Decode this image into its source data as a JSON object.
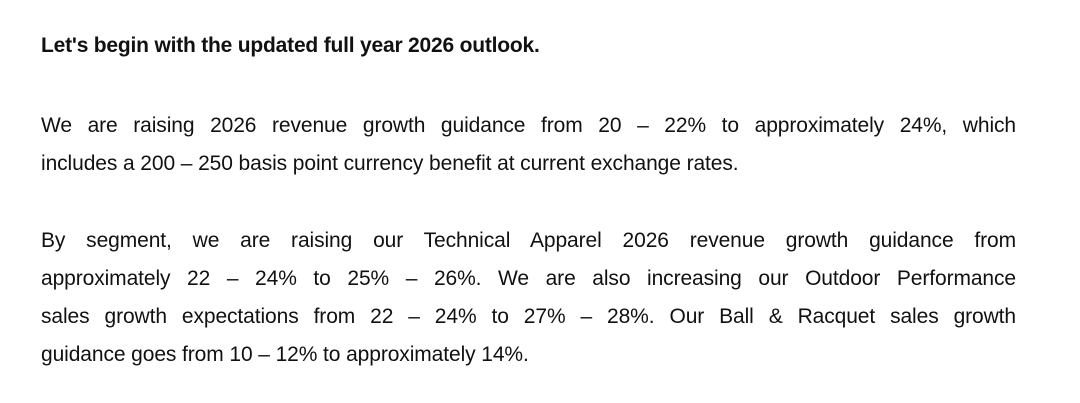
{
  "document": {
    "heading": "Let's begin with the updated full year 2026 outlook.",
    "paragraph1": {
      "lines": [
        "We are raising 2026 revenue growth guidance from 20 – 22% to approximately 24%, which",
        "includes a 200 – 250 basis point currency benefit at current exchange rates."
      ]
    },
    "paragraph2": {
      "lines": [
        "By segment, we are raising our Technical Apparel 2026 revenue growth guidance from",
        "approximately 22 – 24% to 25% – 26%.  We are also increasing our Outdoor Performance",
        "sales growth expectations from 22 – 24% to 27% – 28%.  Our Ball & Racquet sales growth",
        "guidance goes from 10 – 12% to approximately 14%."
      ]
    }
  }
}
